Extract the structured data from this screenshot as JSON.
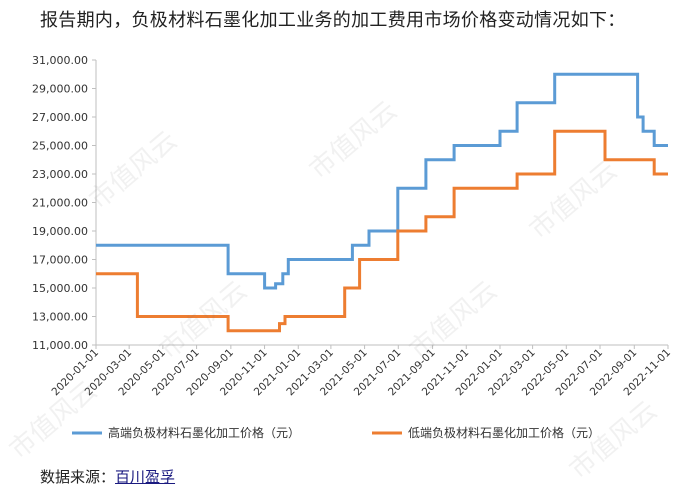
{
  "heading": "报告期内，负极材料石墨化加工业务的加工费用市场价格变动情况如下：",
  "footer": {
    "label": "数据来源：",
    "source": "百川盈孚"
  },
  "watermark": "市值风云",
  "colors": {
    "high": "#5b9bd5",
    "low": "#ed7d31",
    "axis": "#bfbfbf"
  },
  "chart_data": {
    "type": "line",
    "step": true,
    "ylim": [
      11000,
      31000
    ],
    "yticks": [
      "11,000.00",
      "13,000.00",
      "15,000.00",
      "17,000.00",
      "19,000.00",
      "21,000.00",
      "23,000.00",
      "25,000.00",
      "27,000.00",
      "29,000.00",
      "31,000.00"
    ],
    "xlim": [
      "2020-01-01",
      "2022-11-01"
    ],
    "xticks": [
      "2020-01-01",
      "2020-03-01",
      "2020-05-01",
      "2020-07-01",
      "2020-09-01",
      "2020-11-01",
      "2021-01-01",
      "2021-03-01",
      "2021-05-01",
      "2021-07-01",
      "2021-09-01",
      "2021-11-01",
      "2022-01-01",
      "2022-03-01",
      "2022-05-01",
      "2022-07-01",
      "2022-09-01",
      "2022-11-01"
    ],
    "legend_position": "bottom",
    "series": [
      {
        "name": "高端负极材料石墨化加工价格（元）",
        "color": "#5b9bd5",
        "points": [
          [
            "2020-01-01",
            18000
          ],
          [
            "2020-08-27",
            16000
          ],
          [
            "2020-11-01",
            15000
          ],
          [
            "2020-11-21",
            15300
          ],
          [
            "2020-12-04",
            16000
          ],
          [
            "2020-12-14",
            17000
          ],
          [
            "2021-04-09",
            18000
          ],
          [
            "2021-05-09",
            19000
          ],
          [
            "2021-06-30",
            22000
          ],
          [
            "2021-08-20",
            24000
          ],
          [
            "2021-10-10",
            25000
          ],
          [
            "2022-01-01",
            26000
          ],
          [
            "2022-02-01",
            28000
          ],
          [
            "2022-04-10",
            30000
          ],
          [
            "2022-09-07",
            27000
          ],
          [
            "2022-09-17",
            26000
          ],
          [
            "2022-10-07",
            25000
          ],
          [
            "2022-11-01",
            25000
          ]
        ]
      },
      {
        "name": "低端负极材料石墨化加工价格（元）",
        "color": "#ed7d31",
        "points": [
          [
            "2020-01-01",
            16000
          ],
          [
            "2020-03-16",
            13000
          ],
          [
            "2020-08-27",
            12000
          ],
          [
            "2020-11-28",
            12500
          ],
          [
            "2020-12-08",
            13000
          ],
          [
            "2021-03-26",
            15000
          ],
          [
            "2021-04-22",
            17000
          ],
          [
            "2021-06-30",
            19000
          ],
          [
            "2021-08-20",
            20000
          ],
          [
            "2021-10-10",
            22000
          ],
          [
            "2022-02-01",
            23000
          ],
          [
            "2022-04-10",
            26000
          ],
          [
            "2022-07-10",
            24000
          ],
          [
            "2022-10-07",
            23000
          ],
          [
            "2022-11-01",
            23000
          ]
        ]
      }
    ]
  }
}
